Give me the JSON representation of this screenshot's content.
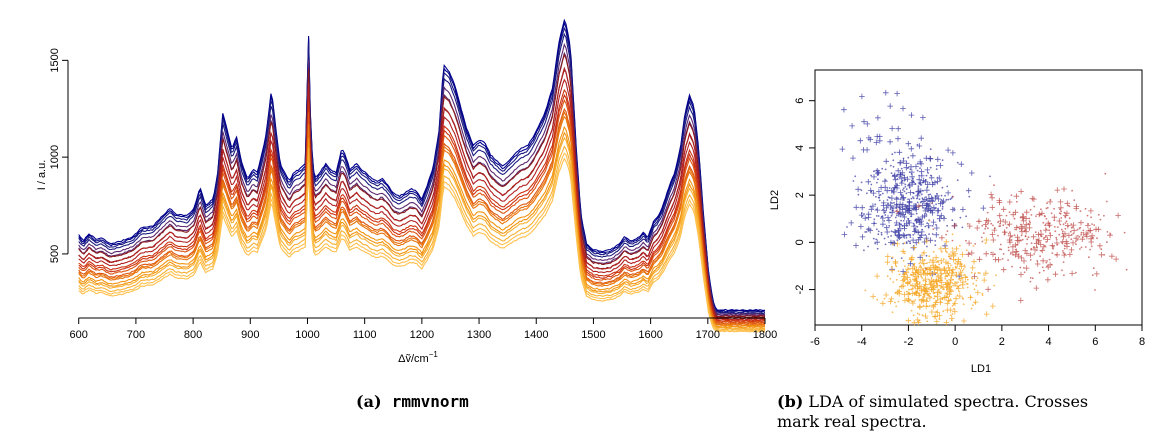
{
  "chart_data": [
    {
      "type": "line",
      "xlabel_prefix": "Δ",
      "xlabel_sym": "ṽ",
      "xlabel_unit": "/cm",
      "xlabel_exp": "−1",
      "ylabel": "I / a.u.",
      "xlim": [
        590,
        1800
      ],
      "ylim": [
        200,
        1760
      ],
      "xticks": [
        600,
        700,
        800,
        900,
        1000,
        1100,
        1200,
        1300,
        1400,
        1500,
        1600,
        1700,
        1800
      ],
      "yticks": [
        500,
        1000,
        1500
      ],
      "grid": false,
      "colors": [
        "#00008B",
        "#1A1A80",
        "#5C2A70",
        "#8B1A1A",
        "#B22222",
        "#CC3311",
        "#DD5511",
        "#E8740F",
        "#F29411",
        "#F7B033",
        "#FFC04D"
      ],
      "profile": [
        [
          600,
          350
        ],
        [
          608,
          330
        ],
        [
          618,
          355
        ],
        [
          630,
          335
        ],
        [
          640,
          340
        ],
        [
          655,
          320
        ],
        [
          675,
          330
        ],
        [
          695,
          345
        ],
        [
          710,
          375
        ],
        [
          730,
          380
        ],
        [
          742,
          405
        ],
        [
          760,
          440
        ],
        [
          770,
          420
        ],
        [
          790,
          415
        ],
        [
          802,
          440
        ],
        [
          812,
          510
        ],
        [
          822,
          450
        ],
        [
          835,
          470
        ],
        [
          843,
          560
        ],
        [
          852,
          760
        ],
        [
          860,
          700
        ],
        [
          868,
          640
        ],
        [
          876,
          680
        ],
        [
          884,
          600
        ],
        [
          895,
          540
        ],
        [
          905,
          570
        ],
        [
          912,
          560
        ],
        [
          920,
          620
        ],
        [
          928,
          690
        ],
        [
          937,
          840
        ],
        [
          944,
          720
        ],
        [
          952,
          590
        ],
        [
          960,
          560
        ],
        [
          968,
          530
        ],
        [
          976,
          560
        ],
        [
          986,
          570
        ],
        [
          996,
          590
        ],
        [
          1002,
          1020
        ],
        [
          1006,
          680
        ],
        [
          1012,
          540
        ],
        [
          1022,
          560
        ],
        [
          1032,
          590
        ],
        [
          1040,
          570
        ],
        [
          1050,
          560
        ],
        [
          1060,
          640
        ],
        [
          1066,
          620
        ],
        [
          1074,
          570
        ],
        [
          1086,
          590
        ],
        [
          1094,
          570
        ],
        [
          1102,
          560
        ],
        [
          1112,
          540
        ],
        [
          1122,
          530
        ],
        [
          1130,
          540
        ],
        [
          1140,
          520
        ],
        [
          1150,
          490
        ],
        [
          1160,
          480
        ],
        [
          1170,
          490
        ],
        [
          1180,
          505
        ],
        [
          1190,
          500
        ],
        [
          1200,
          470
        ],
        [
          1210,
          520
        ],
        [
          1220,
          580
        ],
        [
          1230,
          700
        ],
        [
          1238,
          920
        ],
        [
          1248,
          900
        ],
        [
          1258,
          850
        ],
        [
          1268,
          780
        ],
        [
          1278,
          710
        ],
        [
          1290,
          650
        ],
        [
          1300,
          670
        ],
        [
          1310,
          660
        ],
        [
          1320,
          620
        ],
        [
          1330,
          600
        ],
        [
          1342,
          580
        ],
        [
          1352,
          600
        ],
        [
          1362,
          620
        ],
        [
          1372,
          640
        ],
        [
          1385,
          650
        ],
        [
          1395,
          680
        ],
        [
          1405,
          720
        ],
        [
          1415,
          760
        ],
        [
          1428,
          840
        ],
        [
          1440,
          1000
        ],
        [
          1450,
          1080
        ],
        [
          1460,
          980
        ],
        [
          1470,
          640
        ],
        [
          1478,
          420
        ],
        [
          1488,
          320
        ],
        [
          1500,
          300
        ],
        [
          1515,
          295
        ],
        [
          1530,
          300
        ],
        [
          1545,
          320
        ],
        [
          1555,
          345
        ],
        [
          1565,
          330
        ],
        [
          1578,
          340
        ],
        [
          1588,
          360
        ],
        [
          1595,
          340
        ],
        [
          1605,
          395
        ],
        [
          1612,
          410
        ],
        [
          1620,
          440
        ],
        [
          1630,
          500
        ],
        [
          1642,
          560
        ],
        [
          1652,
          640
        ],
        [
          1660,
          760
        ],
        [
          1668,
          820
        ],
        [
          1676,
          780
        ],
        [
          1684,
          640
        ],
        [
          1692,
          430
        ],
        [
          1700,
          250
        ],
        [
          1710,
          180
        ],
        [
          1720,
          170
        ],
        [
          1740,
          170
        ],
        [
          1770,
          170
        ],
        [
          1800,
          170
        ]
      ]
    },
    {
      "type": "scatter",
      "xlabel": "LD1",
      "ylabel": "LD2",
      "xlim": [
        -6,
        8
      ],
      "ylim": [
        -3.5,
        7.3
      ],
      "xticks": [
        -6,
        -4,
        -2,
        0,
        2,
        4,
        6,
        8
      ],
      "yticks": [
        -2,
        0,
        2,
        4,
        6
      ],
      "grid": false,
      "series": [
        {
          "color": "#3F3FA6",
          "mean": [
            -2.0,
            1.6
          ],
          "sd": [
            1.0,
            1.1
          ],
          "n_points": 320,
          "n_cross": 260
        },
        {
          "color": "#F5A623",
          "mean": [
            -0.9,
            -1.7
          ],
          "sd": [
            0.9,
            0.7
          ],
          "n_points": 360,
          "n_cross": 200
        },
        {
          "color": "#C0504D",
          "mean": [
            3.5,
            0.3
          ],
          "sd": [
            1.6,
            0.8
          ],
          "n_points": 250,
          "n_cross": 150
        }
      ]
    }
  ],
  "captions": {
    "a_label": "(a)",
    "a_text": "rmmvnorm",
    "b_label": "(b)",
    "b_text_line1": "LDA of simulated spectra. Crosses",
    "b_text_line2": "mark real spectra."
  }
}
